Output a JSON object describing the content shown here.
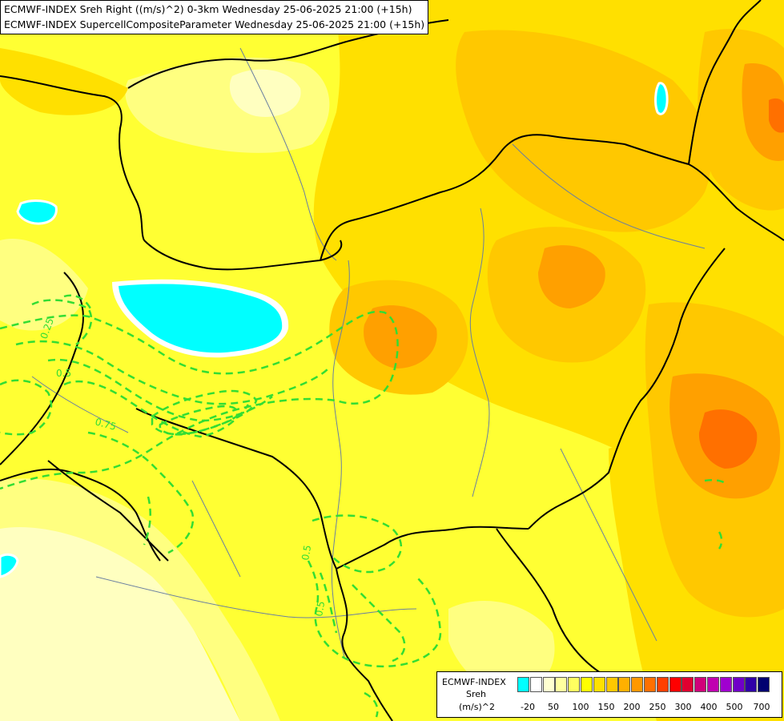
{
  "header": {
    "title_line1": "ECMWF-INDEX Sreh Right ((m/s)^2) 0-3km Wednesday 25-06-2025 21:00 (+15h)",
    "title_line2": "ECMWF-INDEX SupercellCompositeParameter Wednesday 25-06-2025 21:00 (+15h)"
  },
  "legend": {
    "line1": "ECMWF-INDEX",
    "line2": "Sreh",
    "line3": "(m/s)^2",
    "colors": [
      "#00ffff",
      "#ffffff",
      "#ffffd0",
      "#ffffa0",
      "#ffff60",
      "#ffff00",
      "#ffe000",
      "#ffc800",
      "#ffb000",
      "#ff9800",
      "#ff7000",
      "#ff4000",
      "#ff0000",
      "#e00030",
      "#d0007a",
      "#c000b0",
      "#a000d0",
      "#7000c8",
      "#3000a8",
      "#000070"
    ],
    "tick_labels": [
      "-20",
      "50",
      "100",
      "150",
      "200",
      "250",
      "300",
      "400",
      "500",
      "700"
    ]
  },
  "contour_labels": [
    "0.25",
    "0.5",
    "0.75",
    "0.5",
    "0.5"
  ],
  "field_colors": {
    "pale": "#ffffc0",
    "light": "#ffff80",
    "yellow": "#ffff33",
    "gold": "#ffe000",
    "amber": "#ffc800",
    "orange": "#ffa000",
    "dark_orange": "#ff7000",
    "cyan": "#00ffff",
    "contour": "#33dd33",
    "border": "#000000",
    "river": "#6a7fa0"
  }
}
